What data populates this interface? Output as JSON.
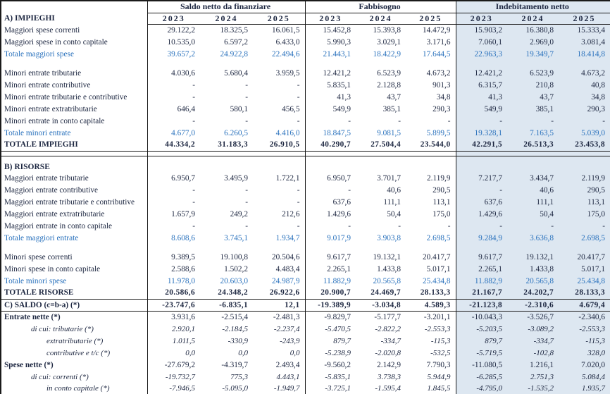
{
  "header": {
    "corner": "",
    "section_a": "A) IMPIEGHI",
    "groups": [
      {
        "title": "Saldo netto da finanziare",
        "years": [
          "2023",
          "2024",
          "2025"
        ]
      },
      {
        "title": "Fabbisogno",
        "years": [
          "2023",
          "2024",
          "2025"
        ]
      },
      {
        "title": "Indebitamento netto",
        "years": [
          "2023",
          "2024",
          "2025"
        ],
        "shaded": true
      }
    ]
  },
  "colors": {
    "ink": "#1c2640",
    "accent_blue": "#2a72bd",
    "shade_bg": "#dde7f1",
    "line": "#1a1a1a"
  },
  "rows": [
    {
      "type": "data",
      "label": "Maggiori spese correnti",
      "values": [
        "29.122,2",
        "18.325,5",
        "16.061,5",
        "15.452,8",
        "15.393,8",
        "14.472,9",
        "15.903,2",
        "16.380,8",
        "15.333,4"
      ]
    },
    {
      "type": "data",
      "label": "Maggiori spese in conto capitale",
      "values": [
        "10.535,0",
        "6.597,2",
        "6.433,0",
        "5.990,3",
        "3.029,1",
        "3.171,6",
        "7.060,1",
        "2.969,0",
        "3.081,4"
      ]
    },
    {
      "type": "subtotal",
      "label": "Totale maggiori spese",
      "values": [
        "39.657,2",
        "24.922,8",
        "22.494,6",
        "21.443,1",
        "18.422,9",
        "17.644,5",
        "22.963,3",
        "19.349,7",
        "18.414,8"
      ]
    },
    {
      "type": "blank"
    },
    {
      "type": "data",
      "label": "Minori entrate tributarie",
      "values": [
        "4.030,6",
        "5.680,4",
        "3.959,5",
        "12.421,2",
        "6.523,9",
        "4.673,2",
        "12.421,2",
        "6.523,9",
        "4.673,2"
      ]
    },
    {
      "type": "data",
      "label": "Minori entrate contributive",
      "values": [
        "-",
        "-",
        "-",
        "5.835,1",
        "2.128,8",
        "901,3",
        "6.315,7",
        "210,8",
        "40,8"
      ]
    },
    {
      "type": "data",
      "label": "Minori entrate tributarie e contributive",
      "values": [
        "-",
        "-",
        "-",
        "41,3",
        "43,7",
        "34,8",
        "41,3",
        "43,7",
        "34,8"
      ]
    },
    {
      "type": "data",
      "label": "Minori entrate extratributarie",
      "values": [
        "646,4",
        "580,1",
        "456,5",
        "549,9",
        "385,1",
        "290,3",
        "549,9",
        "385,1",
        "290,3"
      ]
    },
    {
      "type": "data",
      "label": "Minori entrate in conto capitale",
      "values": [
        "-",
        "-",
        "-",
        "-",
        "-",
        "-",
        "-",
        "-",
        "-"
      ]
    },
    {
      "type": "subtotal",
      "label": "Totale minori entrate",
      "values": [
        "4.677,0",
        "6.260,5",
        "4.416,0",
        "18.847,5",
        "9.081,5",
        "5.899,5",
        "19.328,1",
        "7.163,5",
        "5.039,0"
      ]
    },
    {
      "type": "grandtotal",
      "label": "TOTALE IMPIEGHI",
      "values": [
        "44.334,2",
        "31.183,3",
        "26.910,5",
        "40.290,7",
        "27.504,4",
        "23.544,0",
        "42.291,5",
        "26.513,3",
        "23.453,8"
      ]
    },
    {
      "type": "separator"
    },
    {
      "type": "gap"
    },
    {
      "type": "section",
      "label": "B) RISORSE"
    },
    {
      "type": "data",
      "label": "Maggiori entrate tributarie",
      "values": [
        "6.950,7",
        "3.495,9",
        "1.722,1",
        "6.950,7",
        "3.701,7",
        "2.119,9",
        "7.217,7",
        "3.434,7",
        "2.119,9"
      ]
    },
    {
      "type": "data",
      "label": "Maggiori entrate contributive",
      "values": [
        "-",
        "-",
        "-",
        "-",
        "40,6",
        "290,5",
        "-",
        "40,6",
        "290,5"
      ]
    },
    {
      "type": "data",
      "label": "Maggiori entrate tributarie e contributive",
      "values": [
        "-",
        "-",
        "-",
        "637,6",
        "111,1",
        "113,1",
        "637,6",
        "111,1",
        "113,1"
      ]
    },
    {
      "type": "data",
      "label": "Maggiori entrate extratributarie",
      "values": [
        "1.657,9",
        "249,2",
        "212,6",
        "1.429,6",
        "50,4",
        "175,0",
        "1.429,6",
        "50,4",
        "175,0"
      ]
    },
    {
      "type": "data",
      "label": "Maggiori entrate in conto capitale",
      "values": [
        "-",
        "-",
        "-",
        "-",
        "-",
        "-",
        "-",
        "-",
        "-"
      ]
    },
    {
      "type": "subtotal",
      "label": "Totale maggiori entrate",
      "values": [
        "8.608,6",
        "3.745,1",
        "1.934,7",
        "9.017,9",
        "3.903,8",
        "2.698,5",
        "9.284,9",
        "3.636,8",
        "2.698,5"
      ]
    },
    {
      "type": "blank"
    },
    {
      "type": "data",
      "label": "Minori spese correnti",
      "values": [
        "9.389,5",
        "19.100,8",
        "20.504,6",
        "9.617,7",
        "19.132,1",
        "20.417,7",
        "9.617,7",
        "19.132,1",
        "20.417,7"
      ]
    },
    {
      "type": "data",
      "label": "Minori spese in conto capitale",
      "values": [
        "2.588,6",
        "1.502,2",
        "4.483,4",
        "2.265,1",
        "1.433,8",
        "5.017,1",
        "2.265,1",
        "1.433,8",
        "5.017,1"
      ]
    },
    {
      "type": "subtotal",
      "label": "Totale minori spese",
      "values": [
        "11.978,0",
        "20.603,0",
        "24.987,9",
        "11.882,9",
        "20.565,8",
        "25.434,8",
        "11.882,9",
        "20.565,8",
        "25.434,8"
      ]
    },
    {
      "type": "grandtotal",
      "label": "TOTALE RISORSE",
      "values": [
        "20.586,6",
        "24.348,2",
        "26.922,6",
        "20.900,7",
        "24.469,7",
        "28.133,3",
        "21.167,7",
        "24.202,7",
        "28.133,3"
      ]
    },
    {
      "type": "saldo",
      "label": "C) SALDO (c=b-a) (*)",
      "values": [
        "-23.747,6",
        "-6.835,1",
        "12,1",
        "-19.389,9",
        "-3.034,8",
        "4.589,3",
        "-21.123,8",
        "-2.310,6",
        "4.679,4"
      ]
    },
    {
      "type": "boldlabel",
      "label": "Entrate nette (*)",
      "values": [
        "3.931,6",
        "-2.515,4",
        "-2.481,3",
        "-9.829,7",
        "-5.177,7",
        "-3.201,1",
        "-10.043,3",
        "-3.526,7",
        "-2.340,6"
      ]
    },
    {
      "type": "italic",
      "indent": 1,
      "label": "di cui: tributarie (*)",
      "values": [
        "2.920,1",
        "-2.184,5",
        "-2.237,4",
        "-5.470,5",
        "-2.822,2",
        "-2.553,3",
        "-5.203,5",
        "-3.089,2",
        "-2.553,3"
      ]
    },
    {
      "type": "italic",
      "indent": 2,
      "label": "extratributarie (*)",
      "values": [
        "1.011,5",
        "-330,9",
        "-243,9",
        "879,7",
        "-334,7",
        "-115,3",
        "879,7",
        "-334,7",
        "-115,3"
      ]
    },
    {
      "type": "italic",
      "indent": 2,
      "label": "contributive e t/c (*)",
      "values": [
        "0,0",
        "0,0",
        "0,0",
        "-5.238,9",
        "-2.020,8",
        "-532,5",
        "-5.719,5",
        "-102,8",
        "328,0"
      ]
    },
    {
      "type": "boldlabel",
      "label": "Spese nette (*)",
      "values": [
        "-27.679,2",
        "-4.319,7",
        "2.493,4",
        "-9.560,2",
        "2.142,9",
        "7.790,3",
        "-11.080,5",
        "1.216,1",
        "7.020,0"
      ]
    },
    {
      "type": "italic",
      "indent": 1,
      "label": "di cui: correnti (*)",
      "values": [
        "-19.732,7",
        "775,3",
        "4.443,1",
        "-5.835,1",
        "3.738,3",
        "5.944,9",
        "-6.285,5",
        "2.751,3",
        "5.084,4"
      ]
    },
    {
      "type": "italic",
      "indent": 2,
      "label": "in conto capitale (*)",
      "values": [
        "-7.946,5",
        "-5.095,0",
        "-1.949,7",
        "-3.725,1",
        "-1.595,4",
        "1.845,5",
        "-4.795,0",
        "-1.535,2",
        "1.935,7"
      ]
    }
  ]
}
